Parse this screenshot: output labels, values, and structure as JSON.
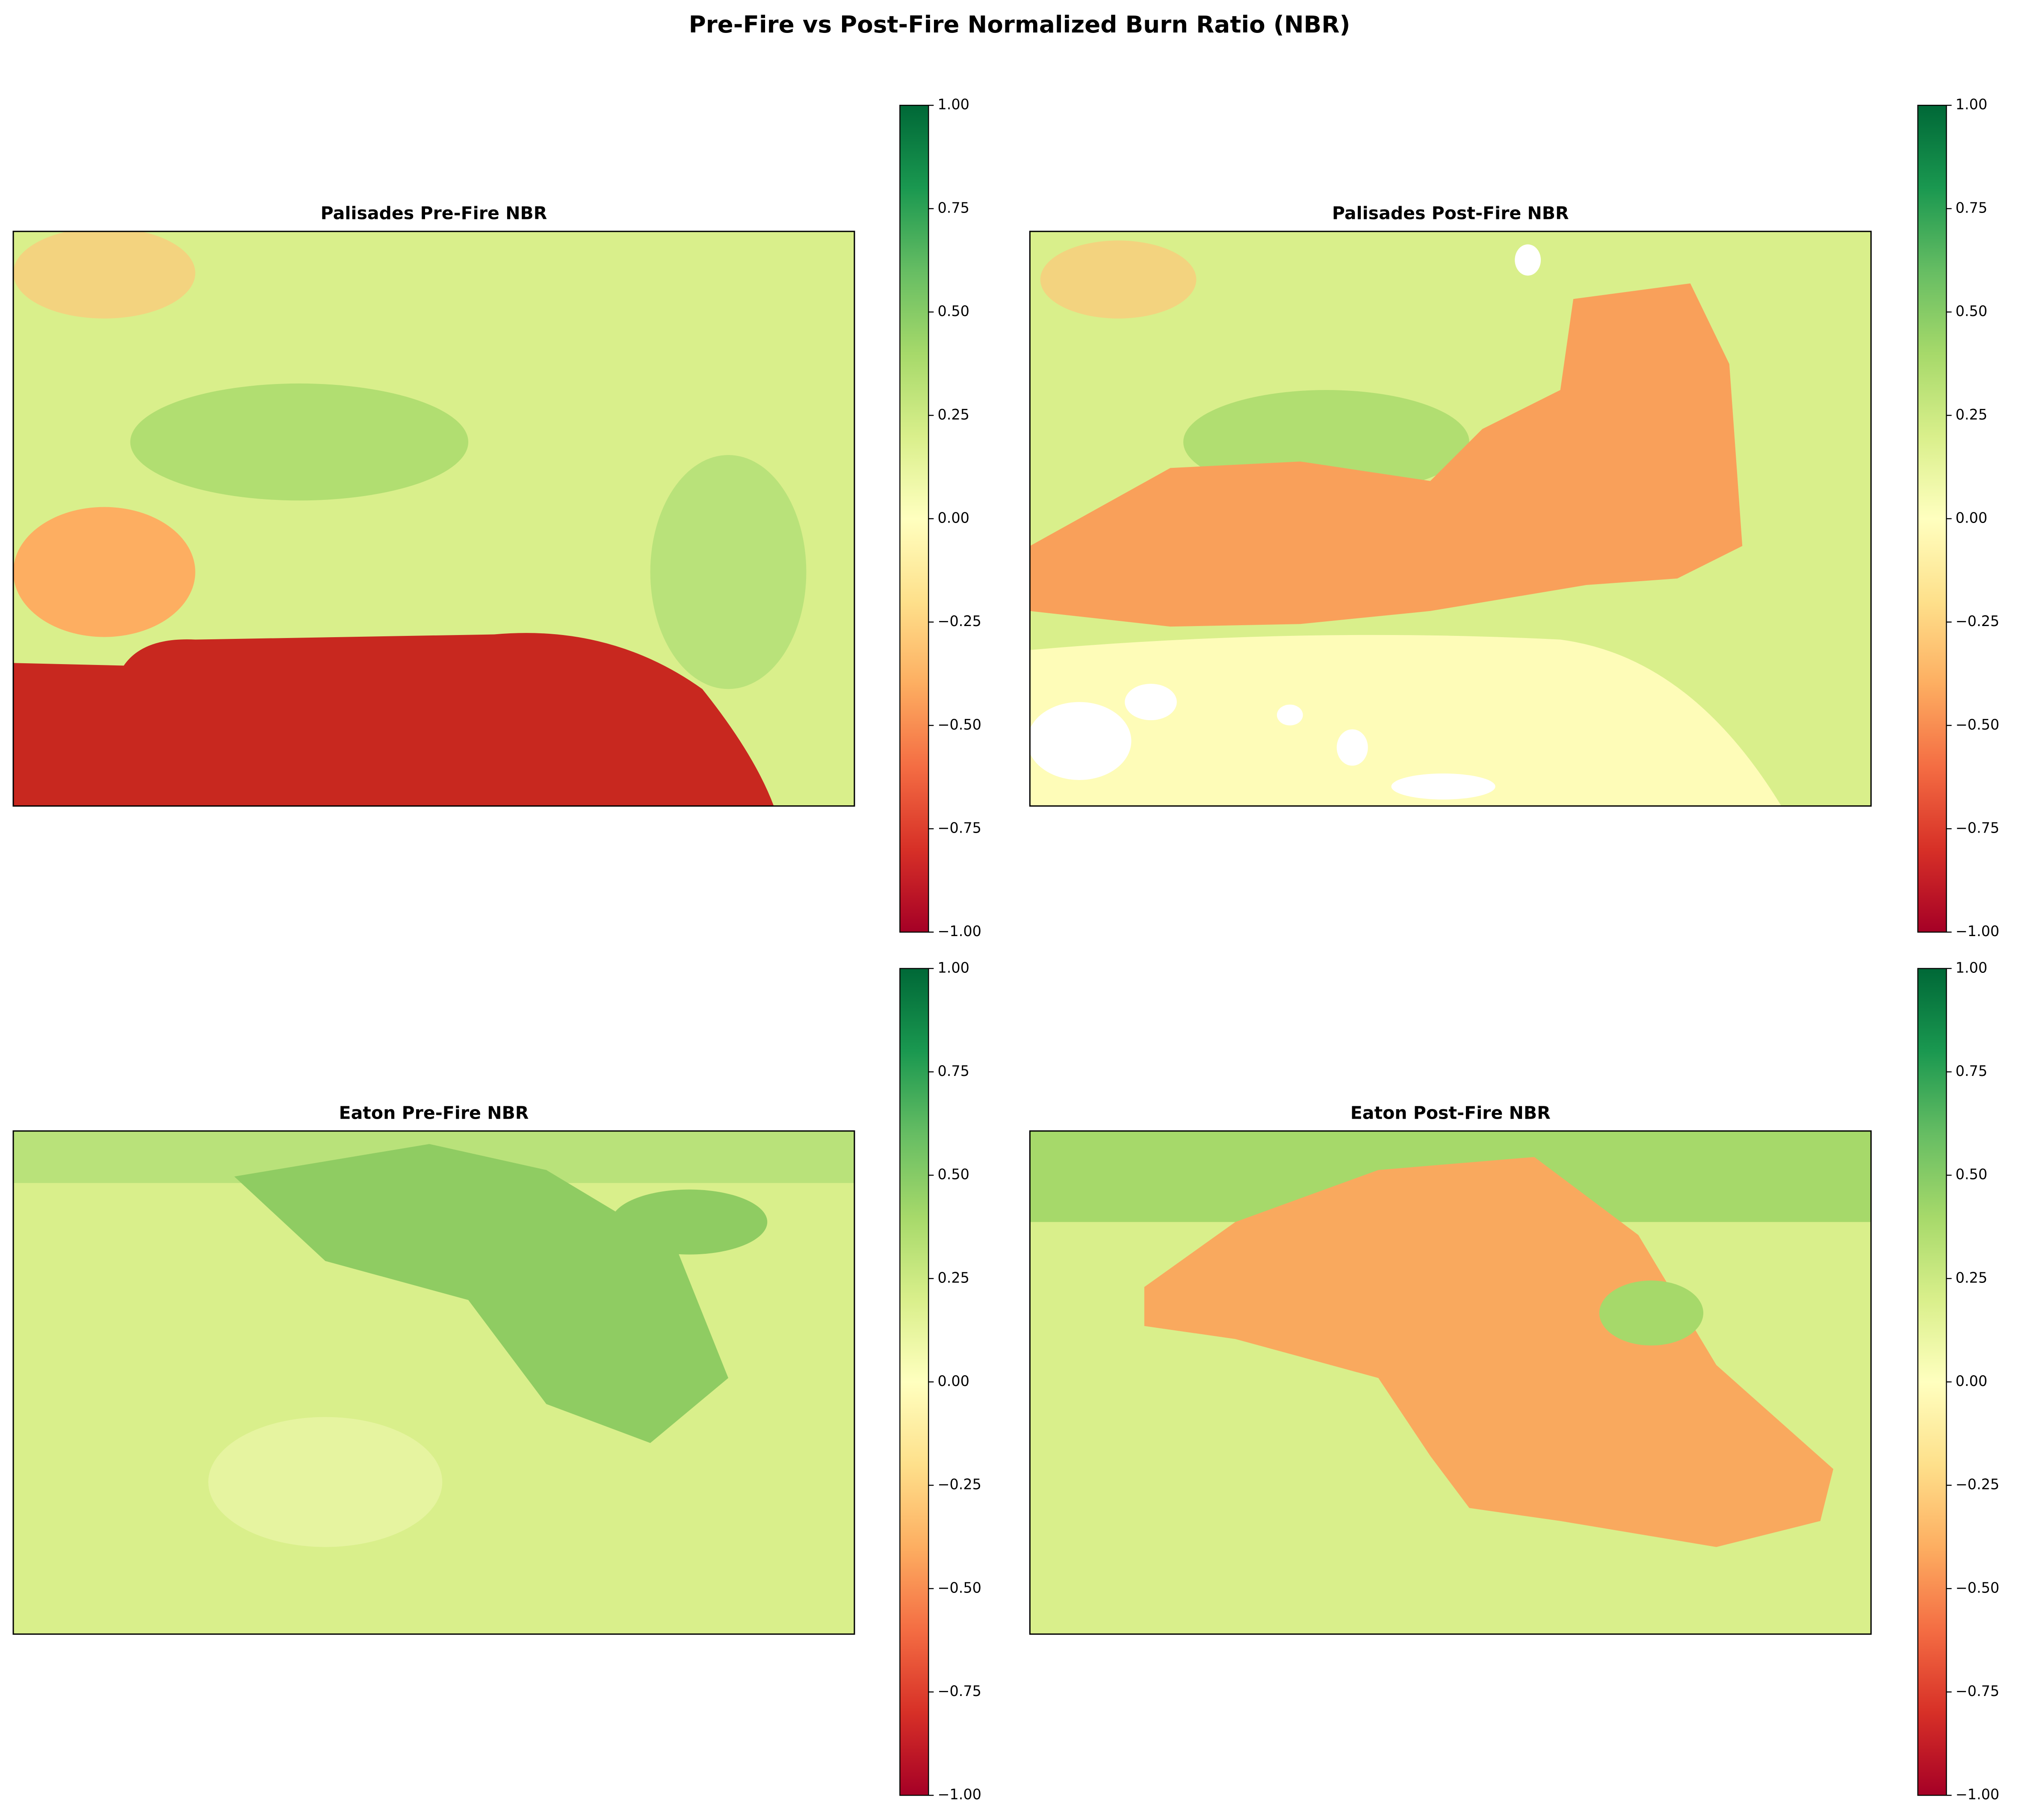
{
  "title": "Pre-Fire vs Post-Fire Normalized Burn Ratio (NBR)",
  "chart_data": [
    {
      "type": "image",
      "title": "Palisades Pre-Fire NBR",
      "colormap": "RdYlGn",
      "clim": [
        -1,
        1
      ],
      "cticks": [
        {
          "value": -1,
          "label": "−1.00"
        },
        {
          "value": -0.75,
          "label": "−0.75"
        },
        {
          "value": -0.5,
          "label": "−0.50"
        },
        {
          "value": -0.25,
          "label": "−0.25"
        },
        {
          "value": 0,
          "label": "0.00"
        },
        {
          "value": 0.25,
          "label": "0.25"
        },
        {
          "value": 0.5,
          "label": "0.50"
        },
        {
          "value": 0.75,
          "label": "0.75"
        },
        {
          "value": 1,
          "label": "1.00"
        }
      ]
    },
    {
      "type": "image",
      "title": "Palisades Post-Fire NBR",
      "colormap": "RdYlGn",
      "clim": [
        -1,
        1
      ],
      "cticks": [
        {
          "value": -1,
          "label": "−1.00"
        },
        {
          "value": -0.75,
          "label": "−0.75"
        },
        {
          "value": -0.5,
          "label": "−0.50"
        },
        {
          "value": -0.25,
          "label": "−0.25"
        },
        {
          "value": 0,
          "label": "0.00"
        },
        {
          "value": 0.25,
          "label": "0.25"
        },
        {
          "value": 0.5,
          "label": "0.50"
        },
        {
          "value": 0.75,
          "label": "0.75"
        },
        {
          "value": 1,
          "label": "1.00"
        }
      ]
    },
    {
      "type": "image",
      "title": "Eaton Pre-Fire NBR",
      "colormap": "RdYlGn",
      "clim": [
        -1,
        1
      ],
      "cticks": [
        {
          "value": -1,
          "label": "−1.00"
        },
        {
          "value": -0.75,
          "label": "−0.75"
        },
        {
          "value": -0.5,
          "label": "−0.50"
        },
        {
          "value": -0.25,
          "label": "−0.25"
        },
        {
          "value": 0,
          "label": "0.00"
        },
        {
          "value": 0.25,
          "label": "0.25"
        },
        {
          "value": 0.5,
          "label": "0.50"
        },
        {
          "value": 0.75,
          "label": "0.75"
        },
        {
          "value": 1,
          "label": "1.00"
        }
      ]
    },
    {
      "type": "image",
      "title": "Eaton Post-Fire NBR",
      "colormap": "RdYlGn",
      "clim": [
        -1,
        1
      ],
      "cticks": [
        {
          "value": -1,
          "label": "−1.00"
        },
        {
          "value": -0.75,
          "label": "−0.75"
        },
        {
          "value": -0.5,
          "label": "−0.50"
        },
        {
          "value": -0.25,
          "label": "−0.25"
        },
        {
          "value": 0,
          "label": "0.00"
        },
        {
          "value": 0.25,
          "label": "0.25"
        },
        {
          "value": 0.5,
          "label": "0.50"
        },
        {
          "value": 0.75,
          "label": "0.75"
        },
        {
          "value": 1,
          "label": "1.00"
        }
      ]
    }
  ]
}
